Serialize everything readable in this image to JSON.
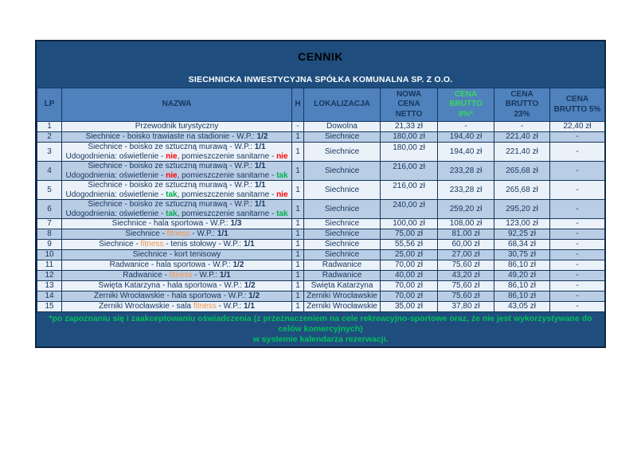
{
  "title": "CENNIK",
  "subtitle": "SIECHNICKA INWESTYCYJNA SPÓŁKA KOMUNALNA SP. Z O.O.",
  "colors": {
    "dark_blue": "#1F4E7E",
    "header_blue": "#4F81BD",
    "row_light": "#EAF1F9",
    "row_shaded": "#B9CDE5",
    "border": "#16365C",
    "green": "#00B050",
    "header_green": "#3BD65F",
    "footer_green": "#00C05A",
    "red": "#FF0000",
    "orange": "#F79646"
  },
  "header": {
    "lp": "LP",
    "nazwa": "NAZWA",
    "h": "H",
    "lokalizacja": "LOKALIZACJA",
    "netto": "NOWA\nCENA\nNETTO",
    "brutto8": "CENA\nBRUTTO\n8%*",
    "brutto23": "CENA\nBRUTTO\n23%",
    "brutto5": "CENA\nBRUTTO 5%"
  },
  "rows": [
    {
      "lp": "1",
      "name": [
        [
          [
            "n",
            "Przewodnik turystyczny"
          ]
        ]
      ],
      "h": "-",
      "lokalizacja": "Dowolna",
      "netto": "21,33 zł",
      "brutto8": "-",
      "brutto23": "-",
      "brutto5": "22,40 zł"
    },
    {
      "lp": "2",
      "name": [
        [
          [
            "n",
            "Siechnice - boisko trawiaste na stadionie - W.P.: "
          ],
          [
            "b",
            "1/2"
          ]
        ]
      ],
      "h": "1",
      "lokalizacja": "Siechnice",
      "netto": "180,00 zł",
      "brutto8": "194,40 zł",
      "brutto23": "221,40 zł",
      "brutto5": "-"
    },
    {
      "lp": "3",
      "name": [
        [
          [
            "n",
            "Siechnice - boisko ze sztuczną murawą - W.P.: "
          ],
          [
            "b",
            "1/1"
          ]
        ],
        [
          [
            "n",
            "Udogodnienia: oświetlenie - "
          ],
          [
            "red",
            "nie"
          ],
          [
            "n",
            ", pomieszczenie sanitarne - "
          ],
          [
            "red",
            "nie"
          ]
        ]
      ],
      "h": "1",
      "lokalizacja": "Siechnice",
      "netto": "180,00 zł",
      "brutto8": "194,40 zł",
      "brutto23": "221,40 zł",
      "brutto5": "-"
    },
    {
      "lp": "4",
      "name": [
        [
          [
            "n",
            "Siechnice - boisko ze sztuczną murawą - W.P.: "
          ],
          [
            "b",
            "1/1"
          ]
        ],
        [
          [
            "n",
            "Udogodnienia: oświetlenie - "
          ],
          [
            "red",
            "nie"
          ],
          [
            "n",
            ", pomieszczenie sanitarne - "
          ],
          [
            "green",
            "tak"
          ]
        ]
      ],
      "h": "1",
      "lokalizacja": "Siechnice",
      "netto": "216,00 zł",
      "brutto8": "233,28 zł",
      "brutto23": "265,68 zł",
      "brutto5": "-"
    },
    {
      "lp": "5",
      "name": [
        [
          [
            "n",
            "Siechnice - boisko ze sztuczną murawą - W.P.: "
          ],
          [
            "b",
            "1/1"
          ]
        ],
        [
          [
            "n",
            "Udogodnienia: oświetlenie - "
          ],
          [
            "green",
            "tak"
          ],
          [
            "n",
            ", pomieszczenie sanitarne - "
          ],
          [
            "red",
            "nie"
          ]
        ]
      ],
      "h": "1",
      "lokalizacja": "Siechnice",
      "netto": "216,00 zł",
      "brutto8": "233,28 zł",
      "brutto23": "265,68 zł",
      "brutto5": "-"
    },
    {
      "lp": "6",
      "name": [
        [
          [
            "n",
            "Siechnice - boisko ze sztuczną murawą - W.P.: "
          ],
          [
            "b",
            "1/1"
          ]
        ],
        [
          [
            "n",
            "Udogodnienia: oświetlenie - "
          ],
          [
            "green",
            "tak"
          ],
          [
            "n",
            ", pomieszczenie sanitarne - "
          ],
          [
            "green",
            "tak"
          ]
        ]
      ],
      "h": "1",
      "lokalizacja": "Siechnice",
      "netto": "240,00 zł",
      "brutto8": "259,20 zł",
      "brutto23": "295,20 zł",
      "brutto5": "-"
    },
    {
      "lp": "7",
      "name": [
        [
          [
            "n",
            "Siechnice - hala sportowa - W.P.: "
          ],
          [
            "b",
            "1/3"
          ]
        ]
      ],
      "h": "1",
      "lokalizacja": "Siechnice",
      "netto": "100,00 zł",
      "brutto8": "108,00 zł",
      "brutto23": "123,00 zł",
      "brutto5": "-"
    },
    {
      "lp": "8",
      "name": [
        [
          [
            "n",
            "Siechnice - "
          ],
          [
            "orange",
            "fitness"
          ],
          [
            "n",
            " - W.P.: "
          ],
          [
            "b",
            "1/1"
          ]
        ]
      ],
      "h": "1",
      "lokalizacja": "Siechnice",
      "netto": "75,00 zł",
      "brutto8": "81,00 zł",
      "brutto23": "92,25 zł",
      "brutto5": "-"
    },
    {
      "lp": "9",
      "name": [
        [
          [
            "n",
            "Siechnice - "
          ],
          [
            "orange",
            "fitness"
          ],
          [
            "n",
            " - tenis stołowy - W.P.: "
          ],
          [
            "b",
            "1/1"
          ]
        ]
      ],
      "h": "1",
      "lokalizacja": "Siechnice",
      "netto": "55,56 zł",
      "brutto8": "60,00 zł",
      "brutto23": "68,34 zł",
      "brutto5": "-"
    },
    {
      "lp": "10",
      "name": [
        [
          [
            "n",
            "Siechnice - kort tenisowy"
          ]
        ]
      ],
      "h": "1",
      "lokalizacja": "Siechnice",
      "netto": "25,00 zł",
      "brutto8": "27,00 zł",
      "brutto23": "30,75 zł",
      "brutto5": "-"
    },
    {
      "lp": "11",
      "name": [
        [
          [
            "n",
            "Radwanice - hala sportowa - W.P.: "
          ],
          [
            "b",
            "1/2"
          ]
        ]
      ],
      "h": "1",
      "lokalizacja": "Radwanice",
      "netto": "70,00 zł",
      "brutto8": "75,60 zł",
      "brutto23": "86,10 zł",
      "brutto5": "-"
    },
    {
      "lp": "12",
      "name": [
        [
          [
            "n",
            "Radwanice - "
          ],
          [
            "orange",
            "fitness"
          ],
          [
            "n",
            " - W.P.: "
          ],
          [
            "b",
            "1/1"
          ]
        ]
      ],
      "h": "1",
      "lokalizacja": "Radwanice",
      "netto": "40,00 zł",
      "brutto8": "43,20 zł",
      "brutto23": "49,20 zł",
      "brutto5": "-"
    },
    {
      "lp": "13",
      "name": [
        [
          [
            "n",
            "Święta Katarzyna - hala sportowa - W.P.: "
          ],
          [
            "b",
            "1/2"
          ]
        ]
      ],
      "h": "1",
      "lokalizacja": "Święta Katarzyna",
      "netto": "70,00 zł",
      "brutto8": "75,60 zł",
      "brutto23": "86,10 zł",
      "brutto5": "-"
    },
    {
      "lp": "14",
      "name": [
        [
          [
            "n",
            "Żerniki Wrocławskie - hala sportowa - W.P.: "
          ],
          [
            "b",
            "1/2"
          ]
        ]
      ],
      "h": "1",
      "lokalizacja": "Żerniki Wrocławskie",
      "netto": "70,00 zł",
      "brutto8": "75,60 zł",
      "brutto23": "86,10 zł",
      "brutto5": "-"
    },
    {
      "lp": "15",
      "name": [
        [
          [
            "n",
            "Żerniki Wrocławskie - sala "
          ],
          [
            "orange",
            "fitness"
          ],
          [
            "n",
            " - W.P.: "
          ],
          [
            "b",
            "1/1"
          ]
        ]
      ],
      "h": "1",
      "lokalizacja": "Żerniki Wrocławskie",
      "netto": "35,00 zł",
      "brutto8": "37,80 zł",
      "brutto23": "43,05 zł",
      "brutto5": "-"
    }
  ],
  "footer_lines": [
    "*po zapoznaniu się i zaakceptowaniu oświadczenia (z przeznaczeniem na cele rekreacyjno-sportowe oraz, że nie jest wykorzystywane do celów komercyjnych)",
    "w systemie kalendarza rezerwacji."
  ]
}
